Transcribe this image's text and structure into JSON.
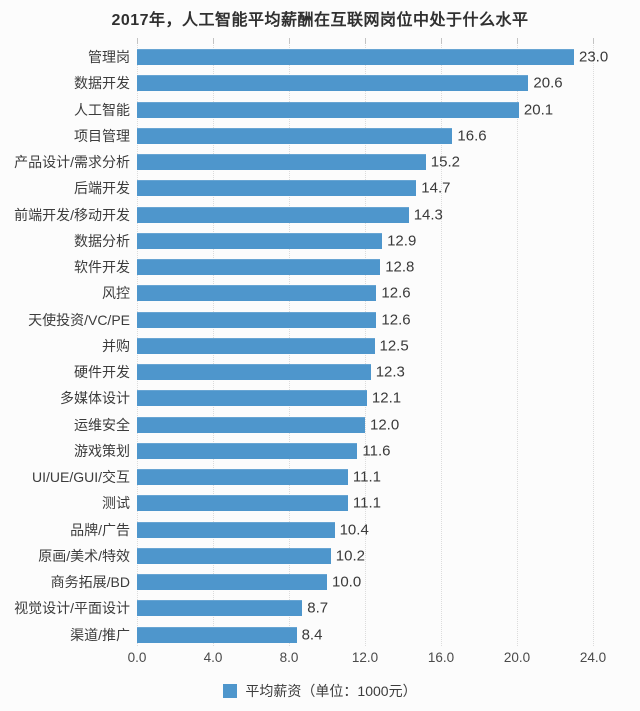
{
  "title": "2017年，人工智能平均薪酬在互联网岗位中处于什么水平",
  "legend": {
    "label": "平均薪资（单位：1000元）"
  },
  "colors": {
    "bar": "#4e96cc",
    "text": "#3c3c3c",
    "grid": "#dcdcdc",
    "background": "#fcfcfc"
  },
  "chart_data": {
    "type": "bar",
    "orientation": "horizontal",
    "title": "2017年，人工智能平均薪酬在互联网岗位中处于什么水平",
    "categories": [
      "管理岗",
      "数据开发",
      "人工智能",
      "项目管理",
      "产品设计/需求分析",
      "后端开发",
      "前端开发/移动开发",
      "数据分析",
      "软件开发",
      "风控",
      "天使投资/VC/PE",
      "并购",
      "硬件开发",
      "多媒体设计",
      "运维安全",
      "游戏策划",
      "UI/UE/GUI/交互",
      "测试",
      "品牌/广告",
      "原画/美术/特效",
      "商务拓展/BD",
      "视觉设计/平面设计",
      "渠道/推广"
    ],
    "values": [
      23.0,
      20.6,
      20.1,
      16.6,
      15.2,
      14.7,
      14.3,
      12.9,
      12.8,
      12.6,
      12.6,
      12.5,
      12.3,
      12.1,
      12.0,
      11.6,
      11.1,
      11.1,
      10.4,
      10.2,
      10.0,
      8.7,
      8.4
    ],
    "xlabel": "",
    "ylabel": "",
    "xlim": [
      0,
      24
    ],
    "x_ticks": [
      "0.0",
      "4.0",
      "8.0",
      "12.0",
      "16.0",
      "20.0",
      "24.0"
    ],
    "grid": true,
    "legend_entries": [
      "平均薪资（单位：1000元）"
    ],
    "legend_position": "bottom",
    "value_labels_shown": true,
    "value_label_decimals": 1
  }
}
